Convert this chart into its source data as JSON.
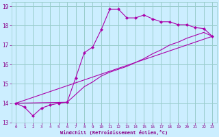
{
  "bg_color": "#cceeff",
  "grid_color": "#99cccc",
  "line_color": "#aa00aa",
  "marker_color": "#aa00aa",
  "xlabel": "Windchill (Refroidissement éolien,°C)",
  "xlabel_color": "#880088",
  "tick_color": "#880088",
  "xlim": [
    -0.5,
    23.5
  ],
  "ylim": [
    13,
    19.2
  ],
  "xticks": [
    0,
    1,
    2,
    3,
    4,
    5,
    6,
    7,
    8,
    9,
    10,
    11,
    12,
    13,
    14,
    15,
    16,
    17,
    18,
    19,
    20,
    21,
    22,
    23
  ],
  "yticks": [
    13,
    14,
    15,
    16,
    17,
    18,
    19
  ],
  "curve1_x": [
    0,
    1,
    2,
    3,
    4,
    5,
    6,
    7,
    8,
    9,
    10,
    11,
    12,
    13,
    14,
    15,
    16,
    17,
    18,
    19,
    20,
    21,
    22,
    23
  ],
  "curve1_y": [
    14.0,
    13.8,
    13.35,
    13.75,
    13.9,
    14.0,
    14.05,
    15.3,
    16.6,
    16.9,
    17.8,
    18.85,
    18.85,
    18.4,
    18.4,
    18.55,
    18.35,
    18.2,
    18.2,
    18.05,
    18.05,
    17.9,
    17.85,
    17.45
  ],
  "curve2_x": [
    0,
    23
  ],
  "curve2_y": [
    14.0,
    17.45
  ],
  "curve3_x": [
    0,
    6,
    7,
    8,
    9,
    10,
    11,
    12,
    13,
    14,
    15,
    16,
    17,
    18,
    19,
    20,
    21,
    22,
    23
  ],
  "curve3_y": [
    14.0,
    14.05,
    14.45,
    14.85,
    15.1,
    15.4,
    15.6,
    15.75,
    15.9,
    16.1,
    16.3,
    16.55,
    16.75,
    17.0,
    17.15,
    17.35,
    17.5,
    17.65,
    17.45
  ]
}
